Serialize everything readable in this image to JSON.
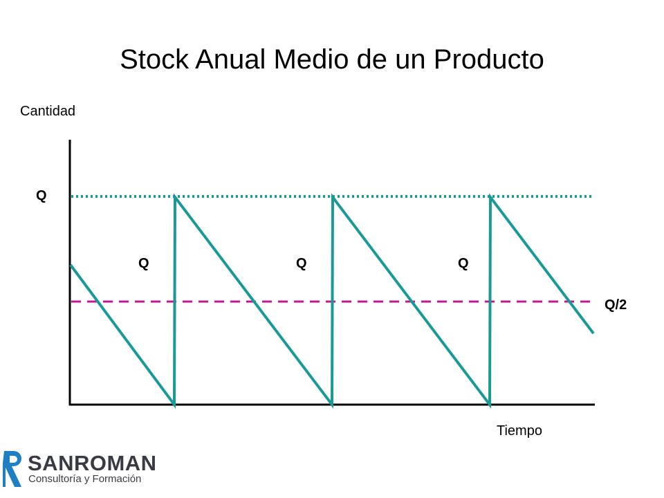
{
  "title": "Stock Anual Medio de un Producto",
  "y_axis_label": "Cantidad",
  "x_axis_label": "Tiempo",
  "levels": {
    "max_label": "Q",
    "average_label": "Q/2"
  },
  "cycle_labels": [
    "Q",
    "Q",
    "Q"
  ],
  "colors": {
    "sawtooth": "#1a9a96",
    "max_line": "#1a9a96",
    "average_line": "#c2188f",
    "axes": "#000000"
  },
  "logo": {
    "name": "SANROMAN",
    "tagline": "Consultoría y Formación",
    "colors": {
      "mark": "#1e7fc2",
      "text": "#3a3a44"
    }
  }
}
